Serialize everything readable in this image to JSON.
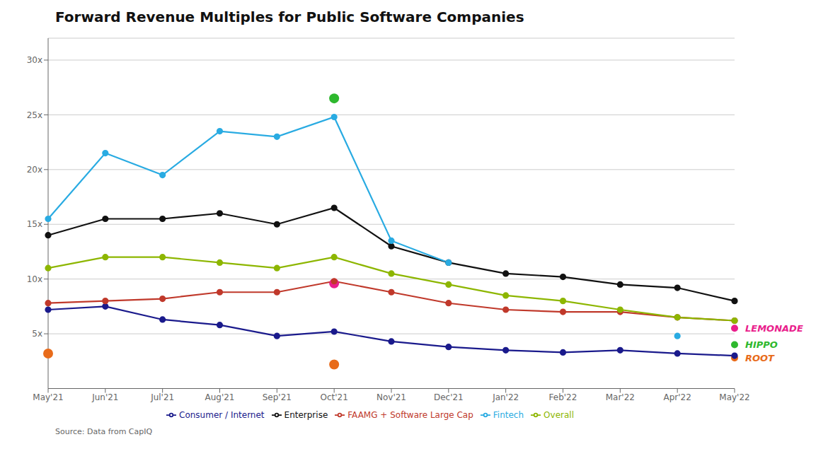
{
  "chart_data": {
    "type": "line",
    "title": "Forward Revenue Multiples for Public Software Companies",
    "categories": [
      "May'21",
      "Jun'21",
      "Jul'21",
      "Aug'21",
      "Sep'21",
      "Oct'21",
      "Nov'21",
      "Dec'21",
      "Jan'22",
      "Feb'22",
      "Mar'22",
      "Apr'22",
      "May'22"
    ],
    "series": [
      {
        "name": "Enterprise",
        "color": "#111111",
        "values": [
          14.0,
          15.5,
          15.5,
          16.0,
          15.0,
          16.5,
          13.0,
          11.5,
          10.5,
          10.2,
          9.5,
          9.2,
          8.0
        ]
      },
      {
        "name": "Consumer / Internet",
        "color": "#1a1a8c",
        "values": [
          7.2,
          7.5,
          6.3,
          5.8,
          4.8,
          5.2,
          4.3,
          3.8,
          3.5,
          3.3,
          3.5,
          3.2,
          3.0
        ]
      },
      {
        "name": "Fintech",
        "color": "#29abe2",
        "values": [
          15.5,
          21.5,
          19.5,
          23.5,
          23.0,
          24.8,
          13.5,
          11.5,
          null,
          null,
          null,
          4.8,
          null
        ]
      },
      {
        "name": "FAAMG + Software Large Cap",
        "color": "#c0392b",
        "values": [
          7.8,
          8.0,
          8.2,
          8.8,
          8.8,
          9.8,
          8.8,
          7.8,
          7.2,
          7.0,
          7.0,
          6.5,
          6.2
        ]
      },
      {
        "name": "Overall",
        "color": "#8db600",
        "values": [
          11.0,
          12.0,
          12.0,
          11.5,
          11.0,
          12.0,
          10.5,
          9.5,
          8.5,
          8.0,
          7.2,
          6.5,
          6.2
        ]
      }
    ],
    "points": [
      {
        "x": "May'21",
        "y": 3.2,
        "color": "#e86b1a"
      },
      {
        "x": "Oct'21",
        "y": 2.2,
        "color": "#e86b1a"
      },
      {
        "x": "Oct'21",
        "y": 9.6,
        "color": "#e91e8c"
      },
      {
        "x": "Oct'21",
        "y": 26.5,
        "color": "#2eb82e"
      }
    ],
    "annotations": [
      {
        "text": "LEMONADE",
        "x": "May'22",
        "y": 5.5,
        "color": "#e91e8c"
      },
      {
        "text": "HIPPO",
        "x": "May'22",
        "y": 4.0,
        "color": "#2eb82e"
      },
      {
        "text": "ROOT",
        "x": "May'22",
        "y": 2.8,
        "color": "#e86b1a"
      },
      {
        "text": "Source: Data from CapIQ"
      }
    ],
    "ylim": [
      0,
      32
    ],
    "yticks": [
      {
        "value": 5,
        "label": "5x"
      },
      {
        "value": 10,
        "label": "10x"
      },
      {
        "value": 15,
        "label": "15x"
      },
      {
        "value": 20,
        "label": "20x"
      },
      {
        "value": 25,
        "label": "25x"
      },
      {
        "value": 30,
        "label": "30x"
      }
    ],
    "grid": true,
    "legend": "bottom",
    "marker": "circle"
  }
}
